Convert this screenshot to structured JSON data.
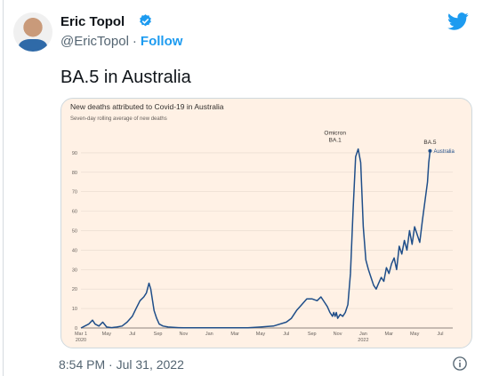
{
  "author": {
    "name": "Eric Topol",
    "handle": "@EricTopol",
    "separator": "·",
    "follow_label": "Follow"
  },
  "icons": {
    "verified": "verified-badge-icon",
    "platform": "twitter-bird-icon",
    "info": "info-icon"
  },
  "colors": {
    "accent": "#1d9bf0",
    "chart_bg": "#fff1e5",
    "line": "#1f4e89"
  },
  "tweet": {
    "text": "BA.5 in Australia",
    "timestamp": "8:54 PM · Jul 31, 2022"
  },
  "chart_data": {
    "type": "line",
    "title": "New deaths attributed to Covid-19 in Australia",
    "subtitle": "Seven-day rolling average of new deaths",
    "y_ticks": [
      "0",
      "10",
      "20",
      "30",
      "40",
      "50",
      "60",
      "70",
      "80",
      "90"
    ],
    "ylim": [
      0,
      95
    ],
    "x_ticks": [
      "Mar 1",
      "May",
      "Jul",
      "Sep",
      "Nov",
      "Jan",
      "Mar",
      "May",
      "Jul",
      "Sep",
      "Nov",
      "Jan",
      "Mar",
      "May",
      "Jul"
    ],
    "x_year_labels": [
      {
        "under": 0,
        "text": "2020"
      },
      {
        "under": 11,
        "text": "2022"
      }
    ],
    "annotations": [
      {
        "label_lines": [
          "Omicron",
          "BA.1"
        ],
        "x": 9.9,
        "y": 92
      },
      {
        "label_lines": [
          "BA.5"
        ],
        "x": 13.6,
        "y": 91
      }
    ],
    "series": [
      {
        "name": "Australia",
        "x": [
          0,
          0.15,
          0.3,
          0.45,
          0.55,
          0.7,
          0.85,
          1.0,
          1.2,
          1.4,
          1.6,
          1.8,
          2.0,
          2.15,
          2.3,
          2.45,
          2.55,
          2.65,
          2.72,
          2.78,
          2.85,
          2.95,
          3.05,
          3.2,
          3.4,
          3.6,
          3.8,
          4.0,
          4.5,
          5,
          5.5,
          6,
          6.5,
          7,
          7.5,
          8,
          8.2,
          8.4,
          8.6,
          8.8,
          9.0,
          9.2,
          9.35,
          9.5,
          9.6,
          9.7,
          9.75,
          9.8,
          9.85,
          9.9,
          9.95,
          10.0,
          10.1,
          10.2,
          10.3,
          10.4,
          10.5,
          10.6,
          10.7,
          10.8,
          10.9,
          11.0,
          11.1,
          11.2,
          11.3,
          11.4,
          11.5,
          11.6,
          11.7,
          11.8,
          11.9,
          12.0,
          12.1,
          12.2,
          12.3,
          12.4,
          12.5,
          12.6,
          12.7,
          12.8,
          12.9,
          13.0,
          13.1,
          13.2,
          13.3,
          13.4,
          13.5,
          13.55,
          13.6
        ],
        "y": [
          0,
          1,
          2,
          4,
          2,
          1,
          3,
          0.5,
          0.2,
          0.5,
          1,
          3,
          6,
          10,
          14,
          16,
          18,
          23,
          20,
          15,
          9,
          5,
          2,
          1,
          0.5,
          0.3,
          0.2,
          0.1,
          0.1,
          0.1,
          0.1,
          0.1,
          0.1,
          0.5,
          1,
          3,
          5,
          9,
          12,
          15,
          15,
          14,
          16,
          13,
          11,
          8,
          7,
          6,
          8,
          6,
          8,
          5,
          7,
          6,
          8,
          12,
          28,
          60,
          88,
          92,
          85,
          52,
          35,
          30,
          26,
          22,
          20,
          23,
          26,
          24,
          31,
          28,
          33,
          36,
          30,
          42,
          38,
          45,
          40,
          50,
          43,
          52,
          48,
          44,
          55,
          65,
          75,
          85,
          91
        ]
      }
    ]
  }
}
